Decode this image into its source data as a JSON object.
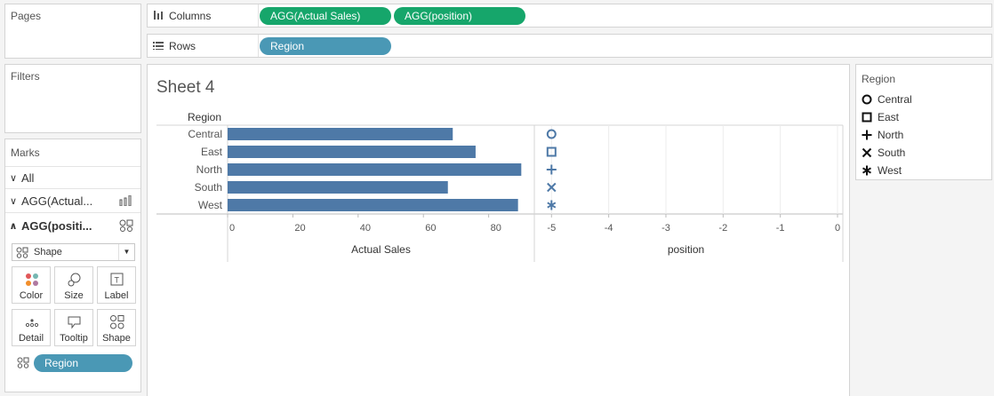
{
  "left_panels": {
    "pages_title": "Pages",
    "filters_title": "Filters",
    "marks_title": "Marks"
  },
  "shelves": {
    "columns_label": "Columns",
    "rows_label": "Rows",
    "column_pills": [
      "AGG(Actual Sales)",
      "AGG(position)"
    ],
    "row_pills": [
      "Region"
    ]
  },
  "marks": {
    "all_label": "All",
    "cards": [
      "AGG(Actual...",
      "AGG(positi..."
    ],
    "mark_type": "Shape",
    "buttons": [
      "Color",
      "Size",
      "Label",
      "Detail",
      "Tooltip",
      "Shape"
    ],
    "shape_pill": "Region"
  },
  "sheet": {
    "title": "Sheet 4",
    "row_header": "Region"
  },
  "legend": {
    "title": "Region",
    "items": [
      {
        "label": "Central",
        "shape": "circle"
      },
      {
        "label": "East",
        "shape": "square"
      },
      {
        "label": "North",
        "shape": "plus"
      },
      {
        "label": "South",
        "shape": "cross"
      },
      {
        "label": "West",
        "shape": "asterisk"
      }
    ]
  },
  "colors": {
    "bar": "#4e79a7",
    "pill_green": "#16a66b",
    "pill_blue": "#4a98b5"
  },
  "chart_data": [
    {
      "type": "bar",
      "categories": [
        "Central",
        "East",
        "North",
        "South",
        "West"
      ],
      "values": [
        69,
        76,
        90,
        67.5,
        89
      ],
      "xlabel": "Actual Sales",
      "xticks": [
        "0",
        "20",
        "40",
        "60",
        "80"
      ],
      "xlim": [
        0,
        94
      ]
    },
    {
      "type": "scatter",
      "categories": [
        "Central",
        "East",
        "North",
        "South",
        "West"
      ],
      "values": [
        -5,
        -5,
        -5,
        -5,
        -5
      ],
      "shapes": [
        "circle",
        "square",
        "plus",
        "cross",
        "asterisk"
      ],
      "xlabel": "position",
      "xticks": [
        "-5",
        "-4",
        "-3",
        "-2",
        "-1",
        "0"
      ],
      "xlim": [
        -5.3,
        0
      ]
    }
  ]
}
